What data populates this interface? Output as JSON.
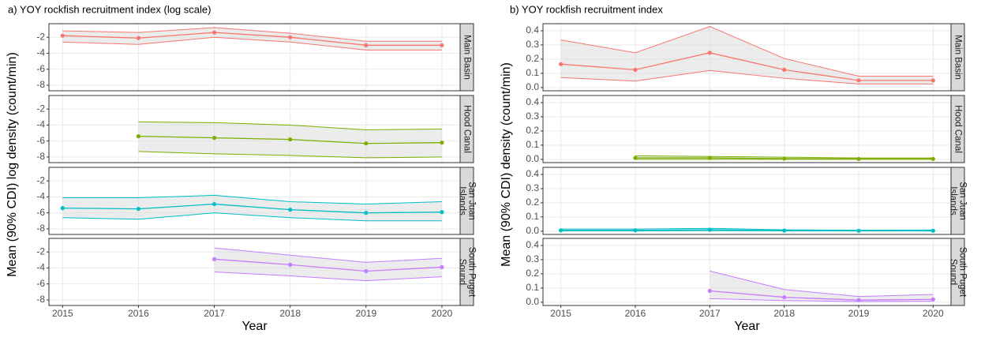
{
  "chart_data": [
    {
      "type": "line",
      "title": "a) YOY rockfish recruitment index (log scale)",
      "x_label": "Year",
      "y_label": "Mean (90% CDI) log density (count/min)",
      "x": [
        2015,
        2016,
        2017,
        2018,
        2019,
        2020
      ],
      "xlim": [
        2014.82,
        2020.24
      ],
      "xticks": [
        2015,
        2016,
        2017,
        2018,
        2019,
        2020
      ],
      "ylim": [
        -8.7,
        -0.3
      ],
      "yticks": [
        -8,
        -6,
        -4,
        -2
      ],
      "grid": true,
      "facets": [
        {
          "label": [
            "Main Basin"
          ],
          "color": "#f8766d",
          "mean": [
            -1.8,
            -2.1,
            -1.4,
            -2.0,
            -3.0,
            -3.0
          ],
          "upper": [
            -1.2,
            -1.4,
            -0.8,
            -1.5,
            -2.5,
            -2.5
          ],
          "lower": [
            -2.6,
            -2.9,
            -2.0,
            -2.6,
            -3.6,
            -3.6
          ]
        },
        {
          "label": [
            "Hood Canal"
          ],
          "color": "#7cae00",
          "mean": [
            null,
            -5.4,
            -5.6,
            -5.8,
            -6.3,
            -6.2
          ],
          "upper": [
            null,
            -3.6,
            -3.7,
            -4.0,
            -4.6,
            -4.5
          ],
          "lower": [
            null,
            -7.3,
            -7.6,
            -7.8,
            -8.1,
            -8.0
          ]
        },
        {
          "label": [
            "San Juan",
            "Islands"
          ],
          "color": "#00bfc4",
          "mean": [
            -5.4,
            -5.5,
            -4.9,
            -5.6,
            -6.0,
            -5.9
          ],
          "upper": [
            -4.1,
            -4.1,
            -3.8,
            -4.6,
            -4.9,
            -4.6
          ],
          "lower": [
            -6.6,
            -6.8,
            -6.0,
            -6.6,
            -7.0,
            -7.0
          ]
        },
        {
          "label": [
            "South Puget",
            "Sound"
          ],
          "color": "#c77cff",
          "mean": [
            null,
            null,
            -2.9,
            -3.6,
            -4.4,
            -3.9
          ],
          "upper": [
            null,
            null,
            -1.5,
            -2.4,
            -3.3,
            -2.8
          ],
          "lower": [
            null,
            null,
            -4.5,
            -5.0,
            -5.6,
            -5.1
          ]
        }
      ]
    },
    {
      "type": "line",
      "title": "b) YOY rockfish recruitment index",
      "x_label": "Year",
      "y_label": "Mean (90% CDI) density (count/min)",
      "x": [
        2015,
        2016,
        2017,
        2018,
        2019,
        2020
      ],
      "xlim": [
        2014.76,
        2020.24
      ],
      "xticks": [
        2015,
        2016,
        2017,
        2018,
        2019,
        2020
      ],
      "ylim": [
        -0.023,
        0.45
      ],
      "yticks": [
        {
          "value": 0,
          "label": "0.0"
        },
        0.1,
        0.2,
        0.3,
        0.4
      ],
      "grid": true,
      "facets": [
        {
          "label": [
            "Main Basin"
          ],
          "color": "#f8766d",
          "mean": [
            0.165,
            0.125,
            0.245,
            0.125,
            0.05,
            0.05
          ],
          "upper": [
            0.335,
            0.245,
            0.43,
            0.205,
            0.08,
            0.08
          ],
          "lower": [
            0.07,
            0.045,
            0.12,
            0.065,
            0.025,
            0.025
          ]
        },
        {
          "label": [
            "Hood Canal"
          ],
          "color": "#7cae00",
          "mean": [
            null,
            0.01,
            0.01,
            0.005,
            0.003,
            0.003
          ],
          "upper": [
            null,
            0.025,
            0.02,
            0.015,
            0.01,
            0.01
          ],
          "lower": [
            null,
            0.0,
            0.0,
            0.0,
            0.0,
            0.0
          ]
        },
        {
          "label": [
            "San Juan",
            "Islands"
          ],
          "color": "#00bfc4",
          "mean": [
            0.006,
            0.006,
            0.01,
            0.004,
            0.003,
            0.003
          ],
          "upper": [
            0.015,
            0.015,
            0.02,
            0.01,
            0.007,
            0.008
          ],
          "lower": [
            0.002,
            0.002,
            0.004,
            0.002,
            0.001,
            0.001
          ]
        },
        {
          "label": [
            "South Puget",
            "Sound"
          ],
          "color": "#c77cff",
          "mean": [
            null,
            null,
            0.08,
            0.035,
            0.015,
            0.02
          ],
          "upper": [
            null,
            null,
            0.22,
            0.09,
            0.04,
            0.055
          ],
          "lower": [
            null,
            null,
            0.025,
            0.012,
            0.005,
            0.007
          ]
        }
      ]
    }
  ]
}
